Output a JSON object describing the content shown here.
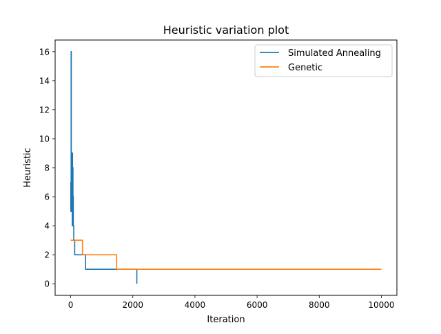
{
  "chart_data": {
    "type": "line",
    "title": "Heuristic variation plot",
    "xlabel": "Iteration",
    "ylabel": "Heuristic",
    "xlim": [
      -500,
      10500
    ],
    "ylim": [
      -0.8,
      16.8
    ],
    "xticks": [
      0,
      2000,
      4000,
      6000,
      8000,
      10000
    ],
    "yticks": [
      0,
      2,
      4,
      6,
      8,
      10,
      12,
      14,
      16
    ],
    "grid": false,
    "legend_position": "top-right",
    "series": [
      {
        "name": "Simulated Annealing",
        "color": "#1f77b4",
        "x": [
          0,
          5,
          5,
          10,
          10,
          15,
          15,
          20,
          20,
          25,
          25,
          30,
          30,
          35,
          35,
          40,
          40,
          45,
          45,
          50,
          50,
          55,
          55,
          60,
          60,
          65,
          65,
          70,
          70,
          75,
          75,
          80,
          80,
          85,
          85,
          90,
          90,
          100,
          100,
          130,
          130,
          480,
          480,
          2130,
          2130
        ],
        "y": [
          7,
          7,
          5,
          5,
          6,
          6,
          16,
          16,
          8,
          8,
          6,
          6,
          5,
          5,
          9,
          9,
          5,
          5,
          7,
          7,
          4,
          4,
          9,
          9,
          6,
          6,
          4,
          4,
          8,
          8,
          5,
          5,
          6,
          6,
          4,
          4,
          4,
          4,
          3,
          3,
          2,
          2,
          1,
          1,
          0
        ]
      },
      {
        "name": "Genetic",
        "color": "#ff7f0e",
        "x": [
          0,
          380,
          380,
          1480,
          1480,
          10000
        ],
        "y": [
          3,
          3,
          2,
          2,
          1,
          1
        ]
      }
    ]
  }
}
